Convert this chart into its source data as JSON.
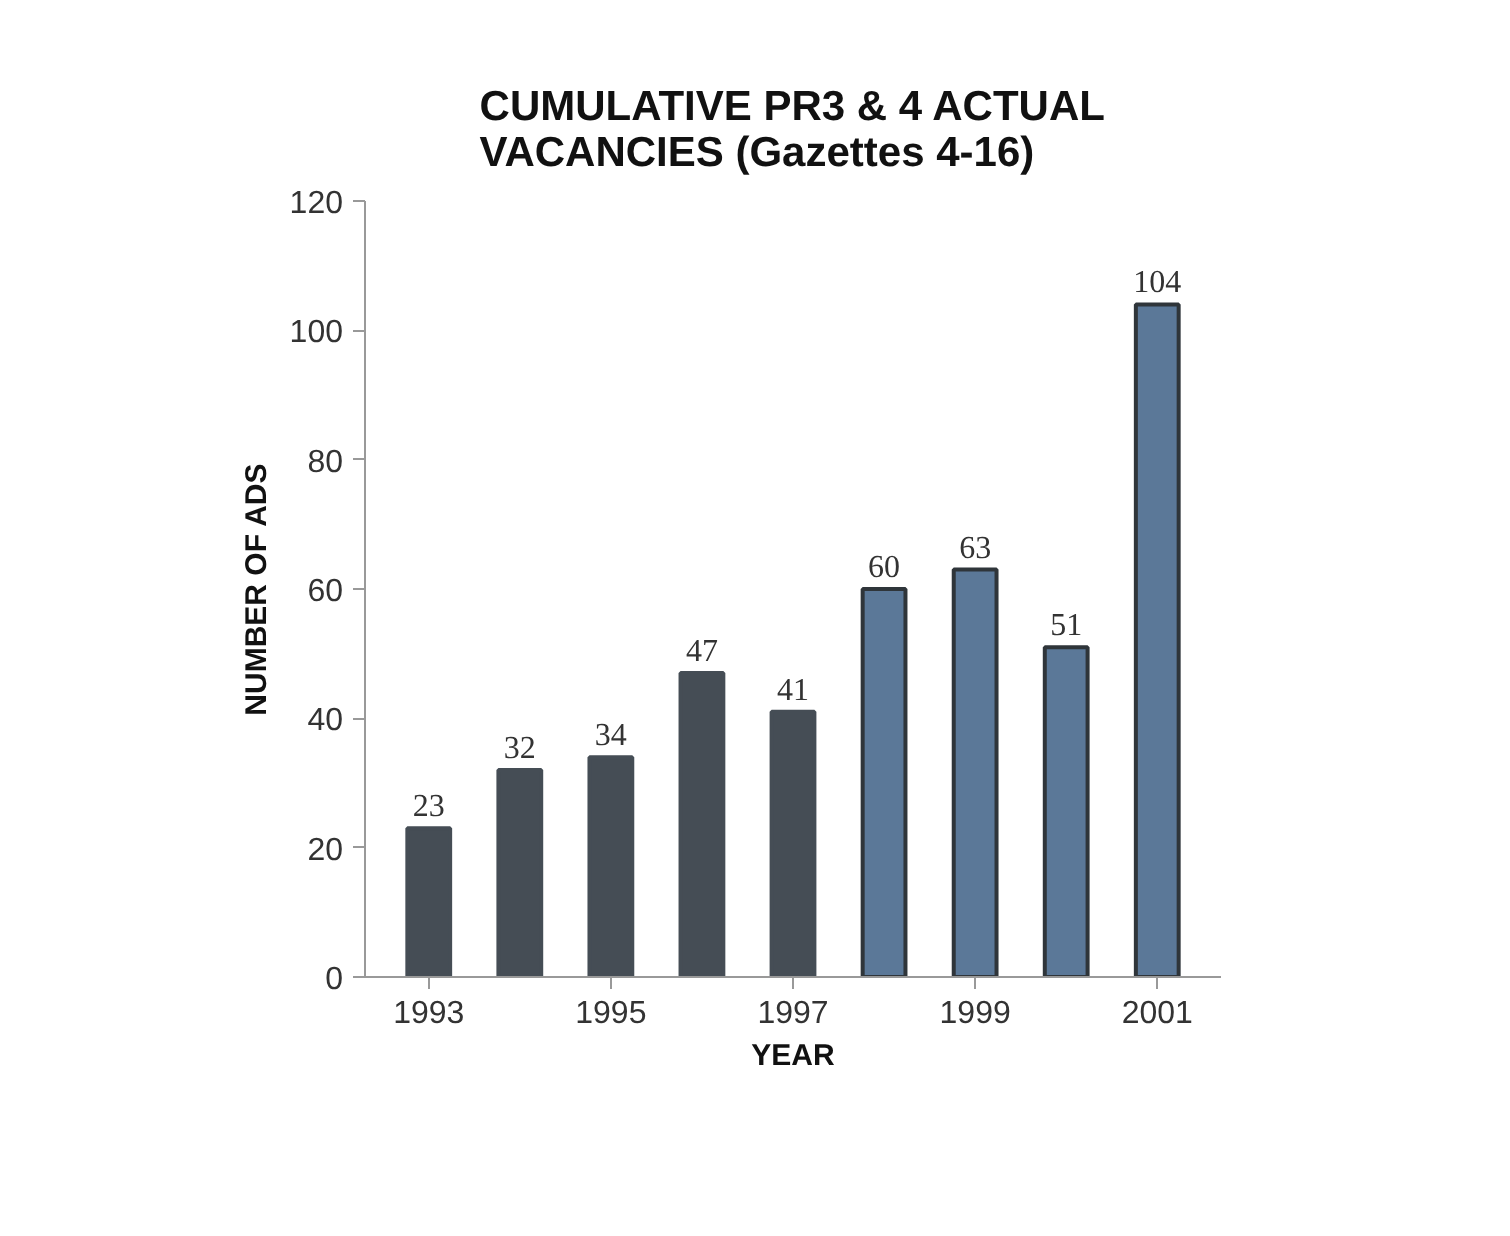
{
  "chart_data": {
    "type": "bar",
    "title": "CUMULATIVE PR3 & 4 ACTUAL\nVACANCIES (Gazettes 4-16)",
    "xlabel": "YEAR",
    "ylabel": "NUMBER OF ADS",
    "categories": [
      "1993",
      null,
      "1995",
      null,
      "1997",
      null,
      "1999",
      null,
      "2001"
    ],
    "values": [
      23,
      32,
      34,
      47,
      41,
      60,
      63,
      51,
      104
    ],
    "colors": [
      "#454d55",
      "#454d55",
      "#454d55",
      "#454d55",
      "#454d55",
      "#5b7898",
      "#5b7898",
      "#5b7898",
      "#5b7898"
    ],
    "ylim": [
      0,
      120
    ],
    "yticks": [
      0,
      20,
      40,
      60,
      80,
      100,
      120
    ],
    "grid": false,
    "data_labels": true
  }
}
